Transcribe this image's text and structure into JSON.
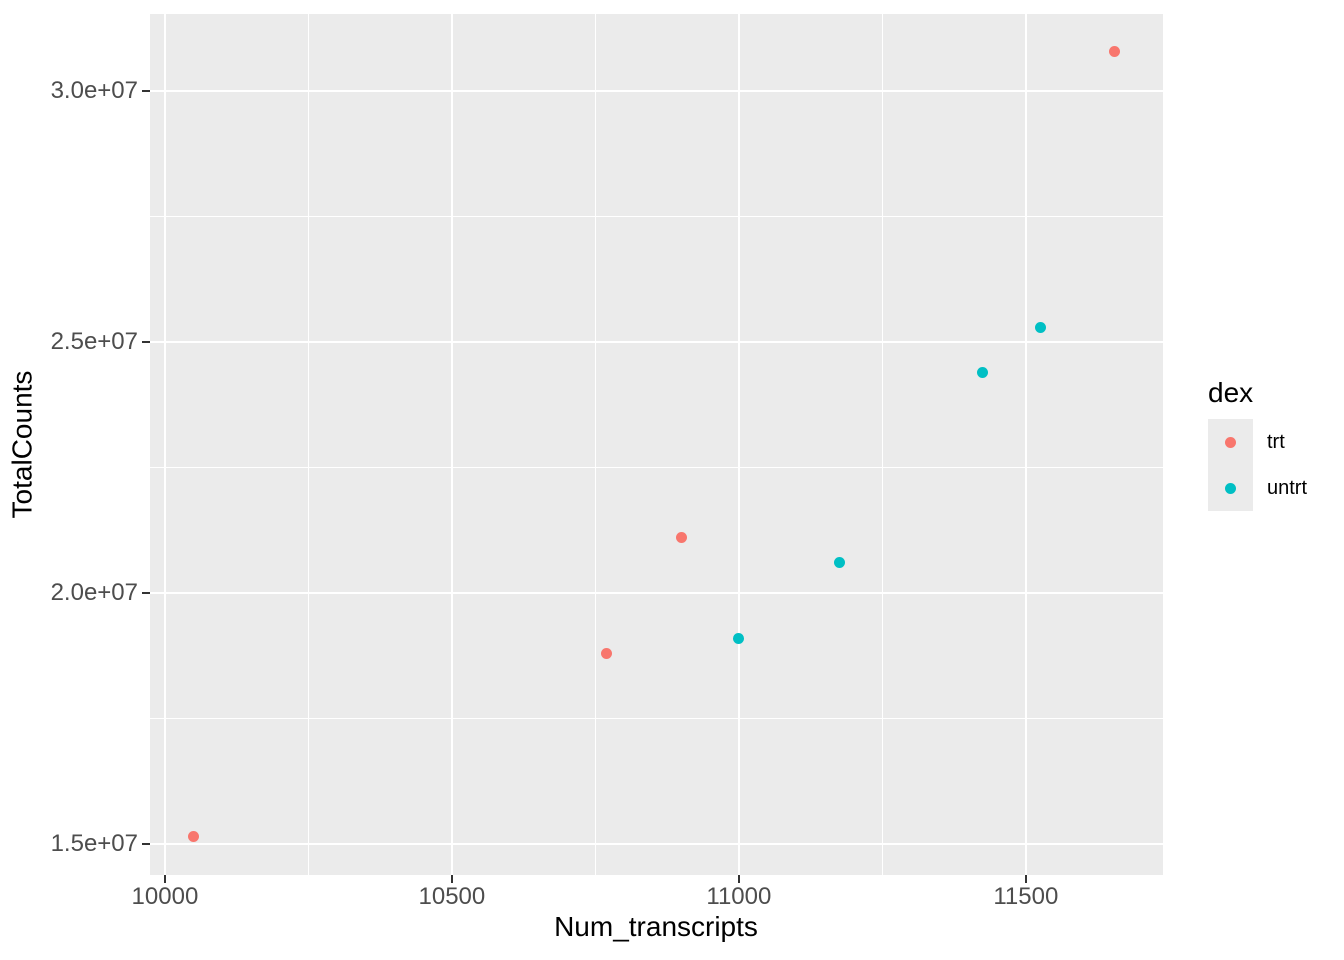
{
  "chart_data": {
    "type": "scatter",
    "title": "",
    "xlabel": "Num_transcripts",
    "ylabel": "TotalCounts",
    "xlim": [
      9974,
      11739
    ],
    "ylim": [
      14380000,
      31540000
    ],
    "x_ticks": [
      10000,
      10500,
      11000,
      11500
    ],
    "x_tick_labels": [
      "10000",
      "10500",
      "11000",
      "11500"
    ],
    "x_minor_ticks": [
      10250,
      10750,
      11250
    ],
    "y_ticks": [
      15000000,
      20000000,
      25000000,
      30000000
    ],
    "y_tick_labels": [
      "1.5e+07",
      "2.0e+07",
      "2.5e+07",
      "3.0e+07"
    ],
    "y_minor_ticks": [
      17500000,
      22500000,
      27500000
    ],
    "grid": true,
    "panel_background": "#EBEBEB",
    "grid_color": "#FFFFFF",
    "legend_key_background": "#EBEBEB",
    "legend_title": "dex",
    "legend_position": "right",
    "series": [
      {
        "name": "trt",
        "color": "#F8766D",
        "points": [
          {
            "x": 10050,
            "y": 15150000
          },
          {
            "x": 10770,
            "y": 18800000
          },
          {
            "x": 10900,
            "y": 21100000
          },
          {
            "x": 11655,
            "y": 30800000
          }
        ]
      },
      {
        "name": "untrt",
        "color": "#00BFC4",
        "points": [
          {
            "x": 11000,
            "y": 19100000
          },
          {
            "x": 11175,
            "y": 20600000
          },
          {
            "x": 11425,
            "y": 24400000
          },
          {
            "x": 11525,
            "y": 25300000
          }
        ]
      }
    ]
  }
}
